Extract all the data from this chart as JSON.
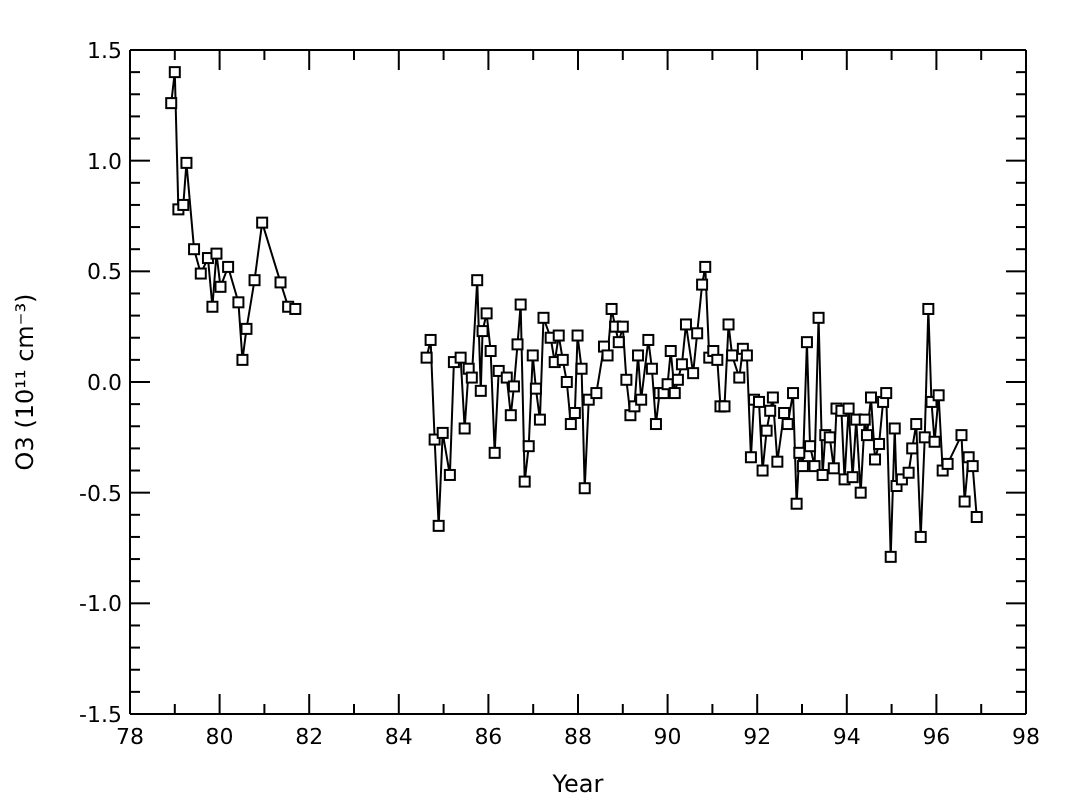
{
  "chart_data": {
    "type": "line",
    "xlabel": "Year",
    "ylabel": "O3 (10¹¹ cm⁻³)",
    "marker": "square",
    "line_style": "solid",
    "xlim": [
      78,
      98
    ],
    "ylim": [
      -1.5,
      1.5
    ],
    "xticks": [
      78,
      {
        "value": 79,
        "label": null
      },
      80,
      {
        "value": 81,
        "label": null
      },
      82,
      {
        "value": 83,
        "label": null
      },
      84,
      {
        "value": 85,
        "label": null
      },
      86,
      {
        "value": 87,
        "label": null
      },
      88,
      {
        "value": 89,
        "label": null
      },
      90,
      {
        "value": 91,
        "label": null
      },
      92,
      {
        "value": 93,
        "label": null
      },
      94,
      {
        "value": 95,
        "label": null
      },
      96,
      {
        "value": 97,
        "label": null
      },
      98
    ],
    "yticks": [
      {
        "value": -1.5,
        "label": "-1.5"
      },
      {
        "value": -1.4,
        "label": null
      },
      {
        "value": -1.3,
        "label": null
      },
      {
        "value": -1.2,
        "label": null
      },
      {
        "value": -1.1,
        "label": null
      },
      {
        "value": -1.0,
        "label": "-1.0"
      },
      {
        "value": -0.9,
        "label": null
      },
      {
        "value": -0.8,
        "label": null
      },
      {
        "value": -0.7,
        "label": null
      },
      {
        "value": -0.6,
        "label": null
      },
      {
        "value": -0.5,
        "label": "-0.5"
      },
      {
        "value": -0.4,
        "label": null
      },
      {
        "value": -0.3,
        "label": null
      },
      {
        "value": -0.2,
        "label": null
      },
      {
        "value": -0.1,
        "label": null
      },
      {
        "value": 0,
        "label": "0.0"
      },
      {
        "value": 0.1,
        "label": null
      },
      {
        "value": 0.2,
        "label": null
      },
      {
        "value": 0.3,
        "label": null
      },
      {
        "value": 0.4,
        "label": null
      },
      {
        "value": 0.5,
        "label": "0.5"
      },
      {
        "value": 0.6,
        "label": null
      },
      {
        "value": 0.7,
        "label": null
      },
      {
        "value": 0.8,
        "label": null
      },
      {
        "value": 0.9,
        "label": null
      },
      {
        "value": 1.0,
        "label": "1.0"
      },
      {
        "value": 1.1,
        "label": null
      },
      {
        "value": 1.2,
        "label": null
      },
      {
        "value": 1.3,
        "label": null
      },
      {
        "value": 1.4,
        "label": null
      },
      {
        "value": 1.5,
        "label": "1.5"
      }
    ],
    "series": [
      {
        "color": "#000000",
        "x": [
          78.92,
          79.0,
          79.08,
          79.19,
          79.26,
          79.43,
          79.58,
          79.74,
          79.84,
          79.93,
          80.02,
          80.19,
          80.42,
          80.51,
          80.6,
          80.78,
          80.95,
          81.36,
          81.53,
          81.69
        ],
        "values": [
          1.26,
          1.4,
          0.78,
          0.8,
          0.99,
          0.6,
          0.49,
          0.56,
          0.34,
          0.58,
          0.43,
          0.52,
          0.36,
          0.1,
          0.24,
          0.46,
          0.72,
          0.45,
          0.34,
          0.33
        ]
      },
      {
        "color": "#000000",
        "x": [
          84.62,
          84.71,
          84.8,
          84.89,
          84.98,
          85.14,
          85.23,
          85.38,
          85.47,
          85.56,
          85.63,
          85.75,
          85.83,
          85.87,
          85.96,
          86.05,
          86.14,
          86.23,
          86.41,
          86.5,
          86.57,
          86.65,
          86.72,
          86.81,
          86.9,
          86.99,
          87.06,
          87.15,
          87.23,
          87.39,
          87.48,
          87.57,
          87.66,
          87.75,
          87.84,
          87.93,
          87.99,
          88.08,
          88.15,
          88.24,
          88.41,
          88.58,
          88.66,
          88.75,
          88.83,
          88.91,
          89.0,
          89.08,
          89.17,
          89.26,
          89.34,
          89.41,
          89.57,
          89.65,
          89.74,
          89.82,
          89.91,
          90.0,
          90.07,
          90.16,
          90.23,
          90.32,
          90.41,
          90.57,
          90.66,
          90.77,
          90.84,
          90.93,
          91.02,
          91.11,
          91.18,
          91.27,
          91.36,
          91.44,
          91.6,
          91.68,
          91.77,
          91.86,
          91.93,
          92.04,
          92.12,
          92.21,
          92.29,
          92.35,
          92.45,
          92.6,
          92.68,
          92.8,
          92.88,
          92.94,
          93.02,
          93.11,
          93.18,
          93.28,
          93.37,
          93.46,
          93.52,
          93.62,
          93.71,
          93.77,
          93.88,
          93.95,
          94.04,
          94.13,
          94.21,
          94.31,
          94.4,
          94.45,
          94.54,
          94.63,
          94.72,
          94.81,
          94.88,
          94.98,
          95.07,
          95.11,
          95.23,
          95.38,
          95.46,
          95.55,
          95.65,
          95.74,
          95.82,
          95.89,
          95.96,
          96.05,
          96.14,
          96.25,
          96.56,
          96.63,
          96.72,
          96.81,
          96.9
        ],
        "values": [
          0.11,
          0.19,
          -0.26,
          -0.65,
          -0.23,
          -0.42,
          0.09,
          0.11,
          -0.21,
          0.06,
          0.02,
          0.46,
          -0.04,
          0.23,
          0.31,
          0.14,
          -0.32,
          0.05,
          0.02,
          -0.15,
          -0.02,
          0.17,
          0.35,
          -0.45,
          -0.29,
          0.12,
          -0.03,
          -0.17,
          0.29,
          0.2,
          0.09,
          0.21,
          0.1,
          0.0,
          -0.19,
          -0.14,
          0.21,
          0.06,
          -0.48,
          -0.08,
          -0.05,
          0.16,
          0.12,
          0.33,
          0.25,
          0.18,
          0.25,
          0.01,
          -0.15,
          -0.11,
          0.12,
          -0.08,
          0.19,
          0.06,
          -0.19,
          -0.05,
          -0.05,
          -0.01,
          0.14,
          -0.05,
          0.01,
          0.08,
          0.26,
          0.04,
          0.22,
          0.44,
          0.52,
          0.11,
          0.14,
          0.1,
          -0.11,
          -0.11,
          0.26,
          0.12,
          0.02,
          0.15,
          0.12,
          -0.34,
          -0.08,
          -0.09,
          -0.4,
          -0.22,
          -0.13,
          -0.07,
          -0.36,
          -0.14,
          -0.19,
          -0.05,
          -0.55,
          -0.32,
          -0.38,
          0.18,
          -0.29,
          -0.38,
          0.29,
          -0.42,
          -0.24,
          -0.25,
          -0.39,
          -0.12,
          -0.13,
          -0.44,
          -0.12,
          -0.43,
          -0.17,
          -0.5,
          -0.17,
          -0.24,
          -0.07,
          -0.35,
          -0.28,
          -0.09,
          -0.05,
          -0.79,
          -0.21,
          -0.47,
          -0.44,
          -0.41,
          -0.3,
          -0.19,
          -0.7,
          -0.25,
          0.33,
          -0.09,
          -0.27,
          -0.06,
          -0.4,
          -0.37,
          -0.24,
          -0.54,
          -0.34,
          -0.38,
          -0.61
        ]
      }
    ]
  }
}
